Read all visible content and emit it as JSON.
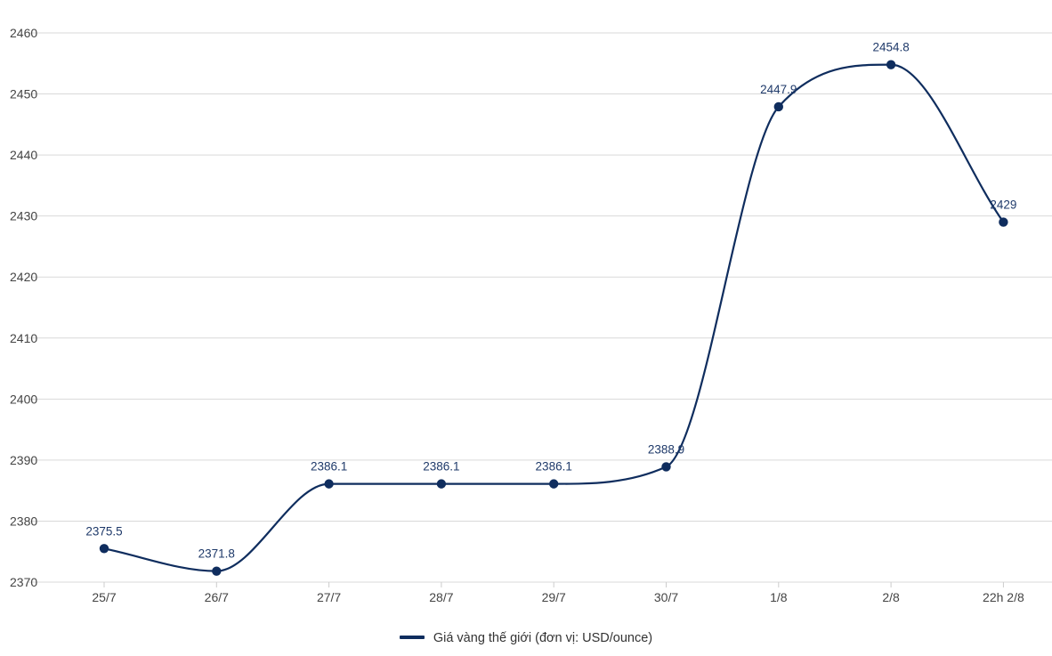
{
  "chart_data": {
    "type": "line",
    "categories": [
      "25/7",
      "26/7",
      "27/7",
      "28/7",
      "29/7",
      "30/7",
      "1/8",
      "2/8",
      "22h 2/8"
    ],
    "series": [
      {
        "name": "Giá vàng thế giới (đơn vị: USD/ounce)",
        "values": [
          2375.5,
          2371.8,
          2386.1,
          2386.1,
          2386.1,
          2388.9,
          2447.9,
          2454.8,
          2429
        ],
        "labels": [
          "2375.5",
          "2371.8",
          "2386.1",
          "2386.1",
          "2386.1",
          "2388.9",
          "2447.9",
          "2454.8",
          "2429"
        ],
        "color": "#0f2d5e"
      }
    ],
    "yticks": [
      "2370",
      "2380",
      "2390",
      "2400",
      "2410",
      "2420",
      "2430",
      "2440",
      "2450",
      "2460"
    ],
    "ylim": [
      2370,
      2460
    ],
    "grid": true,
    "smooth": true,
    "legend_position": "bottom-center"
  }
}
